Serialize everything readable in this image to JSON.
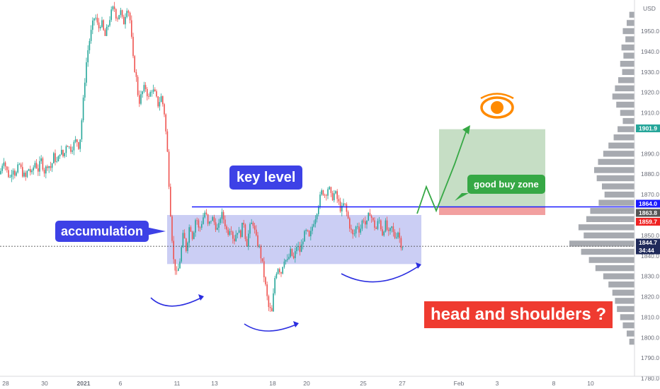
{
  "chart_data": {
    "type": "candlestick",
    "instrument_currency": "USD",
    "y_axis": {
      "ticks": [
        1950.0,
        1940.0,
        1930.0,
        1920.0,
        1910.0,
        1890.0,
        1880.0,
        1870.0,
        1850.0,
        1840.0,
        1830.0,
        1820.0,
        1810.0,
        1800.0,
        1790.0,
        1780.0
      ],
      "ylim": [
        1778,
        1962
      ]
    },
    "x_axis": {
      "ticks": [
        "28",
        "30",
        "2021",
        "6",
        "11",
        "13",
        "18",
        "20",
        "25",
        "27",
        "Feb",
        "3",
        "8",
        "10"
      ]
    },
    "price_labels": [
      {
        "value": "1901.9",
        "color": "#26a69a"
      },
      {
        "value": "1864.0",
        "color": "#1a1aff"
      },
      {
        "value": "1863.8",
        "color": "#555555"
      },
      {
        "value": "1859.7",
        "color": "#ef2222"
      },
      {
        "value": "1844.7",
        "color": "#1f2a5a"
      },
      {
        "value": "34:44",
        "color": "#1f2a5a"
      }
    ],
    "key_level_price": 1864.0,
    "current_price": 1844.7,
    "accumulation_range": [
      1836,
      1860
    ],
    "buy_zone_range": [
      1860,
      1864
    ],
    "target_range": [
      1864,
      1902
    ],
    "price_path": [
      [
        0,
        1880
      ],
      [
        5,
        1888
      ],
      [
        9,
        1882
      ],
      [
        14,
        1878
      ],
      [
        18,
        1884
      ],
      [
        22,
        1879
      ],
      [
        27,
        1885
      ],
      [
        31,
        1881
      ],
      [
        36,
        1878
      ],
      [
        40,
        1883
      ],
      [
        45,
        1880
      ],
      [
        49,
        1886
      ],
      [
        54,
        1882
      ],
      [
        58,
        1887
      ],
      [
        63,
        1881
      ],
      [
        67,
        1885
      ],
      [
        72,
        1883
      ],
      [
        76,
        1889
      ],
      [
        81,
        1885
      ],
      [
        85,
        1892
      ],
      [
        90,
        1888
      ],
      [
        94,
        1896
      ],
      [
        99,
        1892
      ],
      [
        103,
        1894
      ],
      [
        108,
        1897
      ],
      [
        112,
        1893
      ],
      [
        117,
        1913
      ],
      [
        121,
        1932
      ],
      [
        125,
        1943
      ],
      [
        130,
        1952
      ],
      [
        134,
        1958
      ],
      [
        139,
        1951
      ],
      [
        143,
        1955
      ],
      [
        148,
        1947
      ],
      [
        152,
        1952
      ],
      [
        156,
        1958
      ],
      [
        161,
        1962
      ],
      [
        165,
        1956
      ],
      [
        170,
        1960
      ],
      [
        174,
        1953
      ],
      [
        179,
        1962
      ],
      [
        183,
        1958
      ],
      [
        188,
        1936
      ],
      [
        192,
        1928
      ],
      [
        196,
        1915
      ],
      [
        201,
        1920
      ],
      [
        205,
        1923
      ],
      [
        210,
        1917
      ],
      [
        214,
        1922
      ],
      [
        219,
        1919
      ],
      [
        223,
        1914
      ],
      [
        228,
        1918
      ],
      [
        232,
        1910
      ],
      [
        236,
        1893
      ],
      [
        241,
        1860
      ],
      [
        245,
        1838
      ],
      [
        250,
        1830
      ],
      [
        254,
        1838
      ],
      [
        259,
        1851
      ],
      [
        263,
        1843
      ],
      [
        268,
        1856
      ],
      [
        272,
        1849
      ],
      [
        277,
        1860
      ],
      [
        281,
        1852
      ],
      [
        286,
        1858
      ],
      [
        290,
        1862
      ],
      [
        294,
        1854
      ],
      [
        299,
        1859
      ],
      [
        303,
        1856
      ],
      [
        308,
        1852
      ],
      [
        312,
        1861
      ],
      [
        317,
        1857
      ],
      [
        321,
        1851
      ],
      [
        326,
        1855
      ],
      [
        330,
        1847
      ],
      [
        335,
        1853
      ],
      [
        339,
        1850
      ],
      [
        344,
        1857
      ],
      [
        348,
        1845
      ],
      [
        352,
        1853
      ],
      [
        357,
        1857
      ],
      [
        361,
        1849
      ],
      [
        366,
        1844
      ],
      [
        370,
        1837
      ],
      [
        375,
        1825
      ],
      [
        379,
        1815
      ],
      [
        384,
        1812
      ],
      [
        388,
        1829
      ],
      [
        392,
        1835
      ],
      [
        397,
        1832
      ],
      [
        401,
        1839
      ],
      [
        406,
        1837
      ],
      [
        410,
        1842
      ],
      [
        415,
        1838
      ],
      [
        419,
        1845
      ],
      [
        424,
        1842
      ],
      [
        428,
        1849
      ],
      [
        433,
        1852
      ],
      [
        437,
        1848
      ],
      [
        442,
        1856
      ],
      [
        446,
        1860
      ],
      [
        450,
        1866
      ],
      [
        455,
        1872
      ],
      [
        459,
        1870
      ],
      [
        464,
        1874
      ],
      [
        468,
        1868
      ],
      [
        473,
        1871
      ],
      [
        477,
        1867
      ],
      [
        482,
        1862
      ],
      [
        486,
        1866
      ],
      [
        491,
        1859
      ],
      [
        495,
        1853
      ],
      [
        499,
        1849
      ],
      [
        504,
        1856
      ],
      [
        508,
        1852
      ],
      [
        513,
        1859
      ],
      [
        517,
        1854
      ],
      [
        522,
        1862
      ],
      [
        526,
        1857
      ],
      [
        531,
        1853
      ],
      [
        535,
        1858
      ],
      [
        540,
        1851
      ],
      [
        544,
        1856
      ],
      [
        549,
        1850
      ],
      [
        553,
        1854
      ],
      [
        557,
        1849
      ],
      [
        562,
        1852
      ],
      [
        566,
        1846
      ],
      [
        570,
        1844.7
      ]
    ],
    "volume_profile": [
      {
        "price": 1958,
        "w": 0.08
      },
      {
        "price": 1954,
        "w": 0.12
      },
      {
        "price": 1950,
        "w": 0.18
      },
      {
        "price": 1946,
        "w": 0.14
      },
      {
        "price": 1942,
        "w": 0.2
      },
      {
        "price": 1938,
        "w": 0.17
      },
      {
        "price": 1934,
        "w": 0.22
      },
      {
        "price": 1930,
        "w": 0.19
      },
      {
        "price": 1926,
        "w": 0.25
      },
      {
        "price": 1922,
        "w": 0.3
      },
      {
        "price": 1918,
        "w": 0.34
      },
      {
        "price": 1914,
        "w": 0.28
      },
      {
        "price": 1910,
        "w": 0.22
      },
      {
        "price": 1906,
        "w": 0.18
      },
      {
        "price": 1902,
        "w": 0.26
      },
      {
        "price": 1898,
        "w": 0.32
      },
      {
        "price": 1894,
        "w": 0.4
      },
      {
        "price": 1890,
        "w": 0.48
      },
      {
        "price": 1886,
        "w": 0.56
      },
      {
        "price": 1882,
        "w": 0.62
      },
      {
        "price": 1878,
        "w": 0.58
      },
      {
        "price": 1874,
        "w": 0.5
      },
      {
        "price": 1870,
        "w": 0.46
      },
      {
        "price": 1866,
        "w": 0.55
      },
      {
        "price": 1862,
        "w": 0.68
      },
      {
        "price": 1858,
        "w": 0.74
      },
      {
        "price": 1854,
        "w": 0.86
      },
      {
        "price": 1850,
        "w": 0.78
      },
      {
        "price": 1846,
        "w": 1.0
      },
      {
        "price": 1842,
        "w": 0.82
      },
      {
        "price": 1838,
        "w": 0.7
      },
      {
        "price": 1834,
        "w": 0.6
      },
      {
        "price": 1830,
        "w": 0.48
      },
      {
        "price": 1826,
        "w": 0.4
      },
      {
        "price": 1822,
        "w": 0.34
      },
      {
        "price": 1818,
        "w": 0.3
      },
      {
        "price": 1814,
        "w": 0.27
      },
      {
        "price": 1810,
        "w": 0.22
      },
      {
        "price": 1806,
        "w": 0.18
      },
      {
        "price": 1802,
        "w": 0.12
      },
      {
        "price": 1798,
        "w": 0.08
      }
    ]
  },
  "annotations": {
    "accumulation": "accumulation",
    "key_level": "key level",
    "good_buy_zone": "good buy zone",
    "head_and_shoulders": "head and shoulders ?"
  },
  "colors": {
    "callout_blue": "#3d41e6",
    "callout_green": "#36a845",
    "callout_red": "#ef3b30",
    "candle_up": "#26a69a",
    "candle_down": "#ef5350",
    "accumulation_box": "#b9bdf0",
    "target_box": "#c3dcc2",
    "buy_zone_box": "#f2a0a0",
    "eye_orange": "#ff8a00"
  }
}
